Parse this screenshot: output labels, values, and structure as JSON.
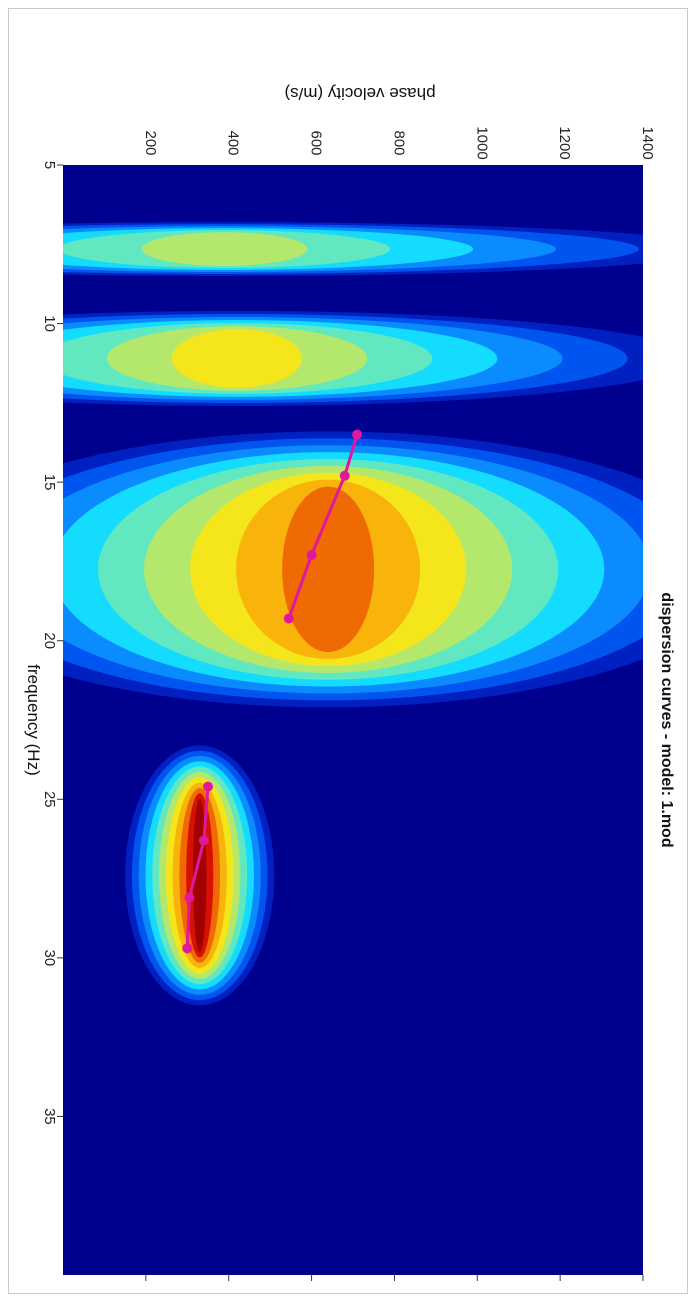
{
  "chart_data": {
    "type": "heatmap",
    "title": "dispersion curves - model: 1.mod",
    "xlabel": "frequency (Hz)",
    "ylabel": "phase velocity (m/s)",
    "xlim": [
      5,
      40
    ],
    "ylim": [
      0,
      1400
    ],
    "x_ticks": [
      5,
      10,
      15,
      20,
      25,
      30,
      35
    ],
    "y_ticks": [
      200,
      400,
      600,
      800,
      1000,
      1200,
      1400
    ],
    "colormap": [
      "#00008f",
      "#0020c0",
      "#0055f0",
      "#0a8cff",
      "#13dcff",
      "#62e8c0",
      "#b4e86c",
      "#f5e61c",
      "#f9b40c",
      "#f06a04",
      "#d81004",
      "#a00000"
    ],
    "energy_bands": [
      {
        "x_start": 6.8,
        "x_end": 8.5,
        "peak_velocity": 390,
        "intensity": 0.5,
        "vel_spread": 1200
      },
      {
        "x_start": 9.6,
        "x_end": 12.6,
        "peak_velocity": 420,
        "intensity": 0.6,
        "vel_spread": 1100
      },
      {
        "x_start": 13.4,
        "x_end": 22.1,
        "peak_velocity": 640,
        "intensity": 0.82,
        "vel_spread": 1000
      },
      {
        "x_start": 23.3,
        "x_end": 31.5,
        "peak_velocity": 330,
        "intensity": 1.0,
        "vel_spread": 180
      }
    ],
    "series": [
      {
        "name": "",
        "color": "#e0189c",
        "x": [
          13.5,
          14.8,
          17.3,
          19.3
        ],
        "y": [
          710,
          680,
          600,
          545
        ]
      },
      {
        "name": "",
        "color": "#e0189c",
        "x": [
          24.6,
          26.3,
          28.1,
          29.7
        ],
        "y": [
          350,
          340,
          305,
          300
        ]
      }
    ]
  }
}
